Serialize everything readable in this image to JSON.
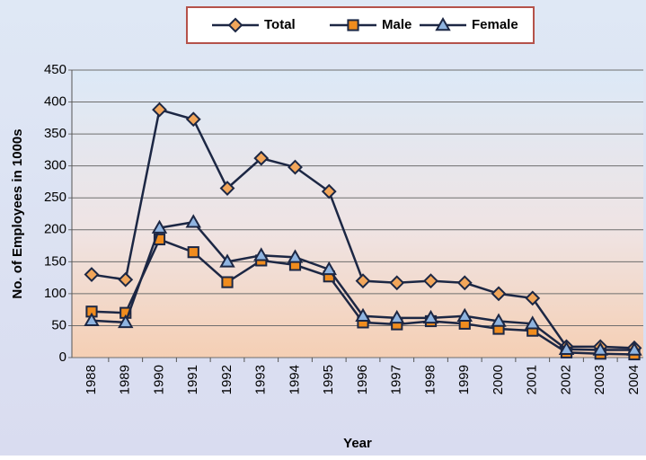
{
  "chart_data": {
    "type": "line",
    "x_label": "Year",
    "y_label": "No. of Employees in 1000s",
    "categories": [
      "1988",
      "1989",
      "1990",
      "1991",
      "1992",
      "1993",
      "1994",
      "1995",
      "1996",
      "1997",
      "1998",
      "1999",
      "2000",
      "2001",
      "2002",
      "2003",
      "2004"
    ],
    "series": [
      {
        "name": "Total",
        "color": "#1c2744",
        "marker": "diamond",
        "marker_fill": "#f2a65a",
        "values": [
          130,
          122,
          388,
          373,
          265,
          312,
          298,
          260,
          120,
          117,
          120,
          117,
          100,
          93,
          17,
          17,
          15
        ]
      },
      {
        "name": "Male",
        "color": "#1c2744",
        "marker": "square",
        "marker_fill": "#f08c1e",
        "values": [
          72,
          70,
          185,
          165,
          118,
          152,
          145,
          127,
          55,
          52,
          57,
          53,
          45,
          42,
          8,
          6,
          5
        ]
      },
      {
        "name": "Female",
        "color": "#1c2744",
        "marker": "triangle",
        "marker_fill": "#8fb4e0",
        "values": [
          58,
          55,
          203,
          212,
          150,
          160,
          157,
          138,
          65,
          62,
          62,
          65,
          57,
          53,
          13,
          12,
          12
        ]
      }
    ],
    "ylim": [
      0,
      450
    ],
    "yticks": [
      0,
      50,
      100,
      150,
      200,
      250,
      300,
      350,
      400,
      450
    ],
    "grid": true
  }
}
